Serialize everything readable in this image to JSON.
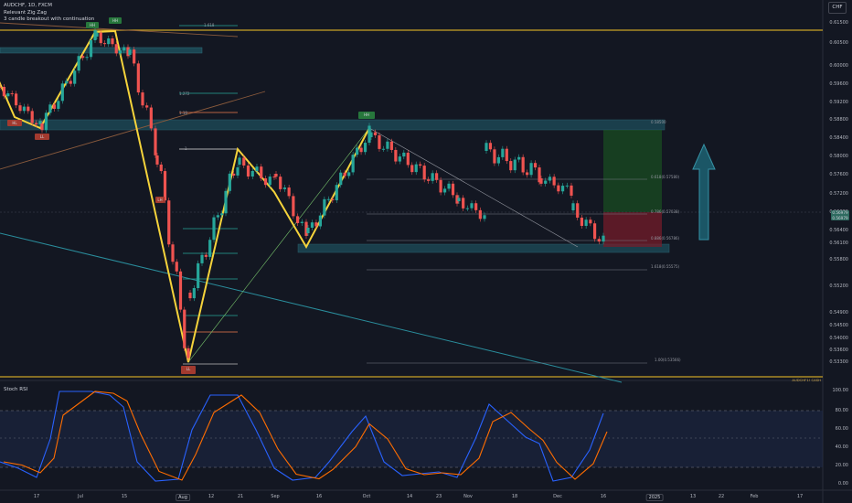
{
  "chart": {
    "symbol": "AUDCHF, 1D, FXCM",
    "indicators": [
      "Relevant Zig Zag",
      "3 candle breakout with continuation"
    ],
    "currency": "CHF",
    "current_price": "0.56979",
    "current_price_sub": "0.56979",
    "future_label": "AUDCHF1! CASH"
  },
  "price_axis": [
    "0.61500",
    "0.60500",
    "0.60000",
    "0.59600",
    "0.59200",
    "0.58800",
    "0.58400",
    "0.58000",
    "0.57600",
    "0.57200",
    "0.56800",
    "0.56400",
    "0.56100",
    "0.55800",
    "0.55200",
    "0.54900",
    "0.54500",
    "0.54000",
    "0.53600",
    "0.53300"
  ],
  "stoch_axis": [
    "100.00",
    "80.00",
    "60.00",
    "40.00",
    "20.00",
    "0.00"
  ],
  "stoch_title": "Stoch RSI",
  "time_axis": [
    "17",
    "Jul",
    "15",
    "Aug",
    "12",
    "21",
    "Sep",
    "16",
    "Oct",
    "14",
    "23",
    "Nov",
    "18",
    "Dec",
    "16",
    "2025",
    "13",
    "22",
    "Feb",
    "17"
  ],
  "time_axis_highlight": [
    "Aug",
    "2025"
  ],
  "zigzag_labels": {
    "hh1": "HH",
    "hh2": "HH",
    "hl": "HL",
    "ll": "LL",
    "lh": "LH",
    "ll2": "LL",
    "hh3": "HH"
  },
  "fib_labels": {
    "f1": "1.618",
    "f2": "1.272",
    "f3": "1.18",
    "f4": "1",
    "r1": "0.5(0.58500)",
    "r2": "0.618(0.57580)",
    "r3": "0.786(0.57038)",
    "r4": "0.886(0.56786)",
    "r5": "1.618(0.55575)",
    "r6": "1.00(0.53566)",
    "r7": "0.58500"
  },
  "colors": {
    "up": "#26a69a",
    "down": "#ef5350",
    "zigzag": "#f5d33b",
    "band": "#1f5b68",
    "stoch_k": "#2962ff",
    "stoch_d": "#ff6d00",
    "target": "#1b5e20",
    "stop": "#7b1d2a"
  }
}
